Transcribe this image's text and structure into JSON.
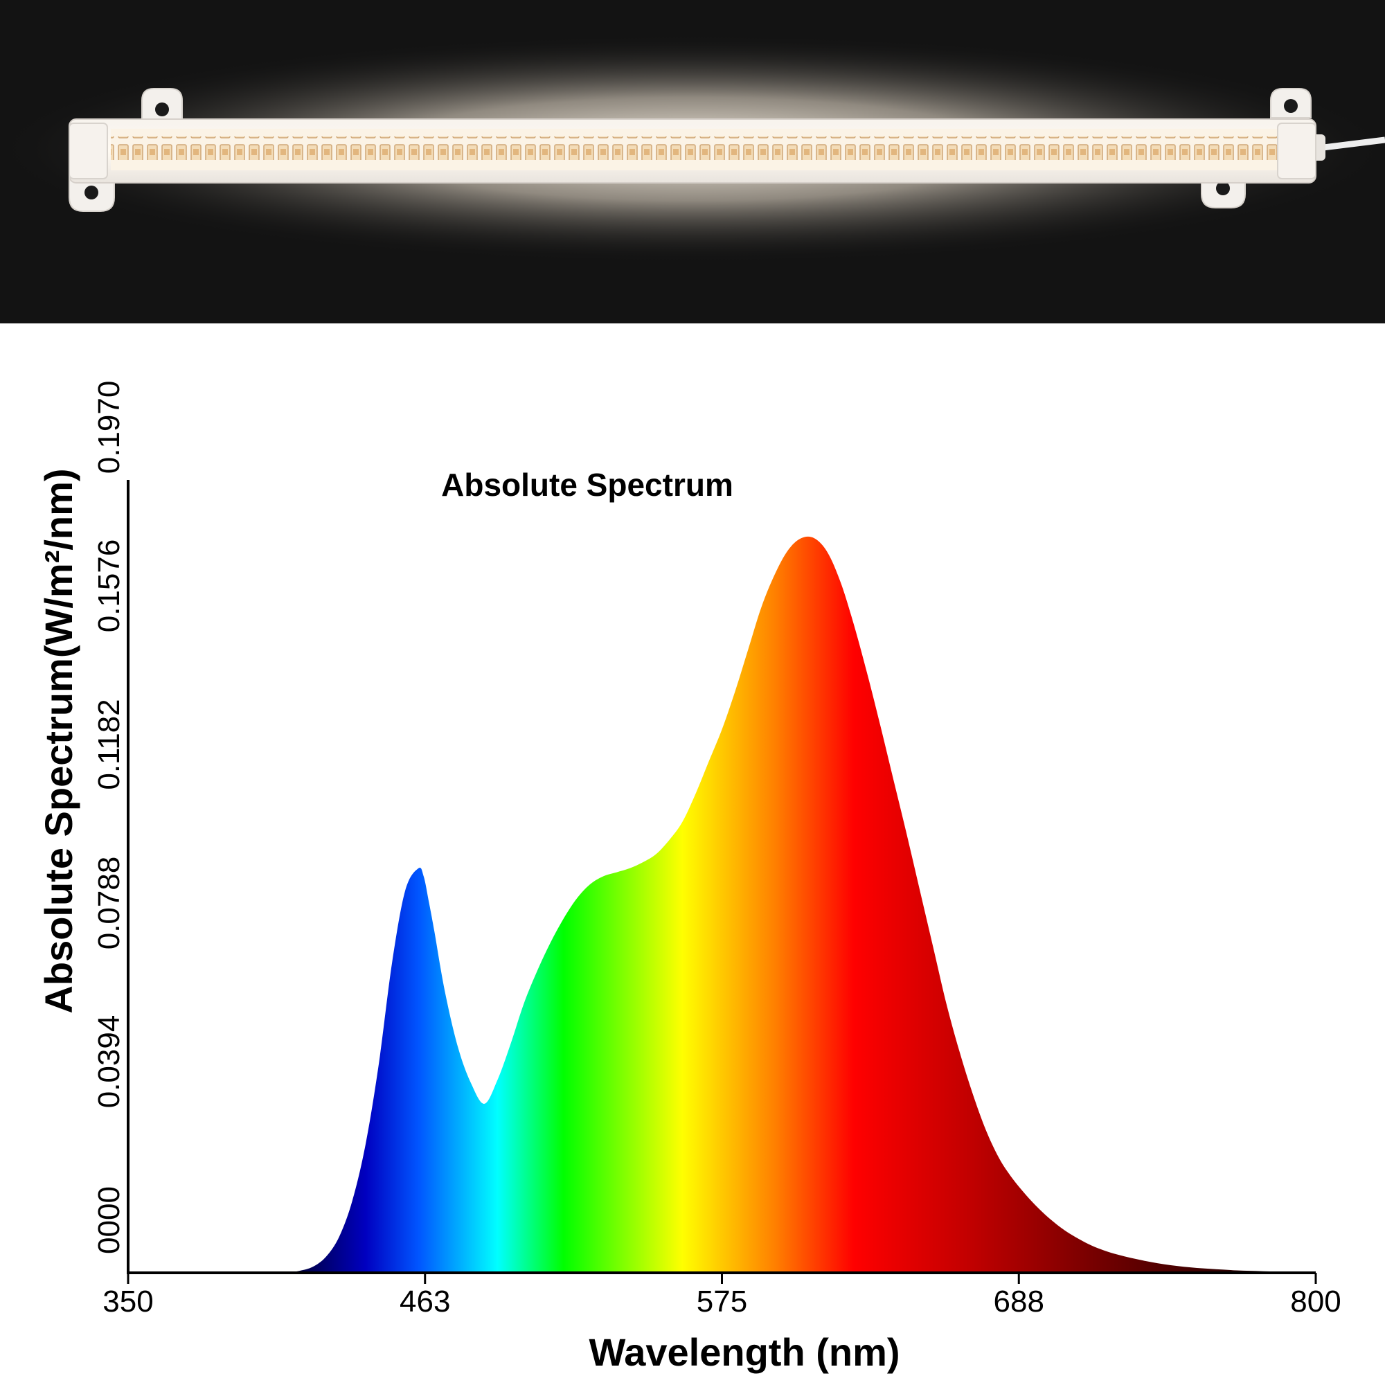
{
  "photo": {
    "subject": "led-grow-light-strip"
  },
  "chart_data": {
    "type": "area",
    "title": "Absolute Spectrum",
    "xlabel": "Wavelength (nm)",
    "ylabel": "Absolute Spectrum(W/m²/nm)",
    "x_ticks": [
      "350",
      "463",
      "575",
      "688",
      "800"
    ],
    "y_ticks": [
      "0000",
      "0.0394",
      "0.0788",
      "0.1182",
      "0.1576",
      "0.1970"
    ],
    "xlim": [
      350,
      800
    ],
    "ylim": [
      0,
      0.197
    ],
    "grid": false,
    "fill": "spectral-wavelength-gradient",
    "x": [
      410,
      415,
      420,
      425,
      430,
      435,
      440,
      445,
      450,
      455,
      460,
      462,
      464,
      466,
      470,
      475,
      480,
      485,
      490,
      495,
      500,
      505,
      510,
      515,
      520,
      525,
      530,
      535,
      540,
      545,
      550,
      555,
      560,
      565,
      570,
      575,
      580,
      585,
      590,
      595,
      600,
      605,
      610,
      615,
      620,
      625,
      630,
      635,
      640,
      645,
      650,
      655,
      660,
      665,
      670,
      675,
      680,
      685,
      690,
      695,
      700,
      705,
      710,
      715,
      720,
      725,
      730,
      735,
      740,
      745,
      750,
      755,
      760,
      765,
      770,
      775,
      780,
      785,
      790,
      795,
      800
    ],
    "values": [
      0,
      0.0005,
      0.0015,
      0.004,
      0.009,
      0.018,
      0.032,
      0.052,
      0.077,
      0.095,
      0.1005,
      0.0985,
      0.092,
      0.085,
      0.07,
      0.056,
      0.047,
      0.042,
      0.048,
      0.057,
      0.067,
      0.075,
      0.082,
      0.088,
      0.093,
      0.0965,
      0.0985,
      0.0995,
      0.1005,
      0.102,
      0.104,
      0.1075,
      0.112,
      0.119,
      0.127,
      0.135,
      0.1445,
      0.155,
      0.1655,
      0.1735,
      0.1795,
      0.1825,
      0.1825,
      0.179,
      0.1715,
      0.161,
      0.149,
      0.136,
      0.1225,
      0.109,
      0.095,
      0.081,
      0.067,
      0.055,
      0.0445,
      0.0355,
      0.0285,
      0.0235,
      0.0195,
      0.016,
      0.013,
      0.0105,
      0.0085,
      0.0068,
      0.0055,
      0.0045,
      0.0037,
      0.003,
      0.0024,
      0.0019,
      0.0015,
      0.0012,
      0.001,
      0.0008,
      0.0006,
      0.0005,
      0.0004,
      0.0003,
      0.0002,
      0.0001,
      0
    ],
    "colors": {
      "axis": "#000000",
      "photo_background": "#131313",
      "gradient": [
        "#000028",
        "#0000c0",
        "#0055ff",
        "#00ffff",
        "#00ff00",
        "#ffff00",
        "#ff8000",
        "#ff0000",
        "#c00000",
        "#700000",
        "#000000"
      ]
    }
  }
}
